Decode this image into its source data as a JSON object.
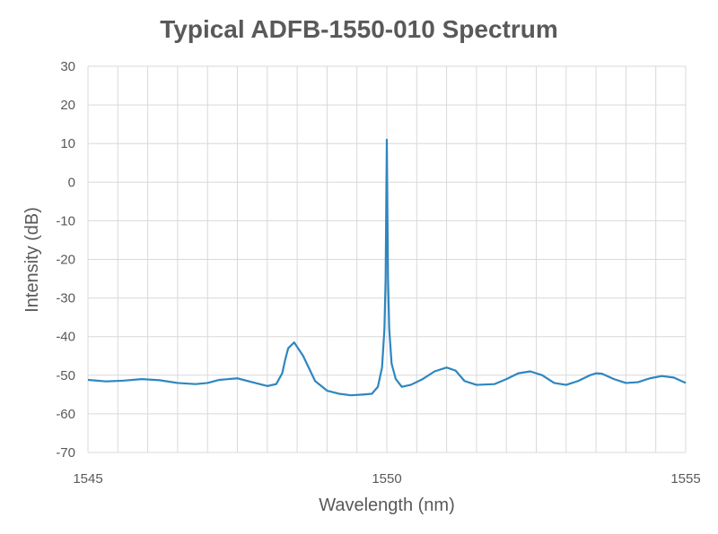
{
  "chart_data": {
    "type": "line",
    "title": "Typical ADFB-1550-010 Spectrum",
    "xlabel": "Wavelength (nm)",
    "ylabel": "Intensity (dB)",
    "xlim": [
      1545,
      1555
    ],
    "ylim": [
      -70,
      30
    ],
    "x_ticks": [
      "1545",
      "1550",
      "1555"
    ],
    "y_ticks": [
      "30",
      "20",
      "10",
      "0",
      "-10",
      "-20",
      "-30",
      "-40",
      "-50",
      "-60",
      "-70"
    ],
    "grid": true,
    "legend": "none",
    "series": [
      {
        "color": "#2E86C1",
        "x": [
          1545.0,
          1545.3,
          1545.6,
          1545.9,
          1546.2,
          1546.5,
          1546.8,
          1547.0,
          1547.2,
          1547.5,
          1547.8,
          1548.0,
          1548.15,
          1548.25,
          1548.3,
          1548.35,
          1548.45,
          1548.6,
          1548.8,
          1549.0,
          1549.2,
          1549.4,
          1549.6,
          1549.75,
          1549.85,
          1549.92,
          1549.96,
          1549.98,
          1550.0,
          1550.02,
          1550.04,
          1550.08,
          1550.15,
          1550.25,
          1550.4,
          1550.6,
          1550.8,
          1551.0,
          1551.15,
          1551.3,
          1551.5,
          1551.8,
          1552.0,
          1552.2,
          1552.4,
          1552.6,
          1552.8,
          1553.0,
          1553.2,
          1553.4,
          1553.5,
          1553.6,
          1553.8,
          1554.0,
          1554.2,
          1554.4,
          1554.6,
          1554.8,
          1555.0
        ],
        "y": [
          -51.2,
          -51.6,
          -51.4,
          -51.0,
          -51.3,
          -52.0,
          -52.3,
          -52.0,
          -51.2,
          -50.8,
          -52.0,
          -52.8,
          -52.3,
          -49.5,
          -46.0,
          -43.0,
          -41.5,
          -45.0,
          -51.5,
          -54.0,
          -54.8,
          -55.2,
          -55.0,
          -54.8,
          -53.0,
          -48.0,
          -38.0,
          -25.0,
          11.0,
          -25.0,
          -38.0,
          -47.0,
          -51.0,
          -53.0,
          -52.5,
          -51.0,
          -49.0,
          -48.0,
          -48.8,
          -51.5,
          -52.5,
          -52.3,
          -51.0,
          -49.5,
          -49.0,
          -50.0,
          -52.0,
          -52.5,
          -51.5,
          -50.0,
          -49.5,
          -49.6,
          -51.0,
          -52.0,
          -51.8,
          -50.8,
          -50.2,
          -50.6,
          -52.0
        ]
      }
    ]
  }
}
